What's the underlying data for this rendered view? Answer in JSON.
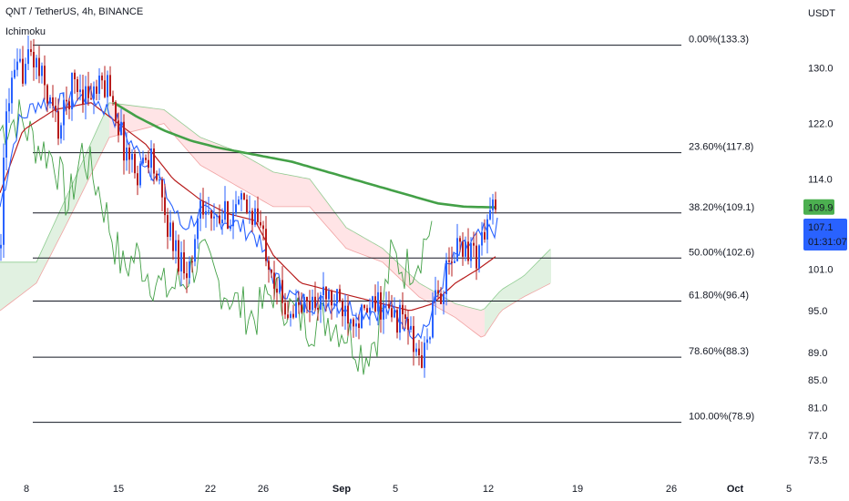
{
  "header": {
    "symbol_line": "QNT / TetherUS, 4h, BINANCE",
    "indicator": "Ichimoku"
  },
  "price_axis": {
    "currency": "USDT",
    "ticks": [
      "130.0",
      "122.0",
      "114.0",
      "101.0",
      "95.0",
      "89.0",
      "85.0",
      "81.0",
      "77.0",
      "73.5"
    ],
    "tick_values": [
      130.0,
      122.0,
      114.0,
      101.0,
      95.0,
      89.0,
      85.0,
      81.0,
      77.0,
      73.5
    ],
    "badges": [
      {
        "text": "109.9",
        "value": 109.9,
        "color": "#4caf50"
      },
      {
        "text": "107.1",
        "value": 107.1,
        "color": "#2962ff"
      },
      {
        "text": "01:31:07",
        "value": 107.1,
        "color": "#2962ff"
      }
    ]
  },
  "time_axis": {
    "labels": [
      "8",
      "15",
      "22",
      "26",
      "Sep",
      "5",
      "12",
      "19",
      "26",
      "Oct",
      "5"
    ],
    "bold": [
      "Sep",
      "Oct"
    ]
  },
  "colors": {
    "bull": "#2962ff",
    "bear": "#b71c1c",
    "ma": "#43a047",
    "conversion": "#2962ff",
    "base": "#b71c1c",
    "lagging": "#43a047",
    "cloud_bull": "#c8e6c9",
    "cloud_bear": "#ffcdd2",
    "fib_line": "#131722"
  },
  "chart_data": {
    "type": "candlestick",
    "title": "QNT / TetherUS, 4h, BINANCE",
    "y_unit": "USDT",
    "ylim": [
      71.5,
      138.5
    ],
    "fib_levels": [
      {
        "label": "0.00%(133.3)",
        "value": 133.3
      },
      {
        "label": "23.60%(117.8)",
        "value": 117.8
      },
      {
        "label": "38.20%(109.1)",
        "value": 109.1
      },
      {
        "label": "50.00%(102.6)",
        "value": 102.6
      },
      {
        "label": "61.80%(96.4)",
        "value": 96.4
      },
      {
        "label": "78.60%(88.3)",
        "value": 88.3
      },
      {
        "label": "100.00%(78.9)",
        "value": 78.9
      }
    ],
    "price_path": [
      {
        "x": 0,
        "v": 104
      },
      {
        "x": 8,
        "v": 126
      },
      {
        "x": 20,
        "v": 129
      },
      {
        "x": 35,
        "v": 132
      },
      {
        "x": 50,
        "v": 127
      },
      {
        "x": 65,
        "v": 121
      },
      {
        "x": 80,
        "v": 128
      },
      {
        "x": 100,
        "v": 126
      },
      {
        "x": 120,
        "v": 128
      },
      {
        "x": 135,
        "v": 119
      },
      {
        "x": 150,
        "v": 115
      },
      {
        "x": 165,
        "v": 118
      },
      {
        "x": 180,
        "v": 109
      },
      {
        "x": 195,
        "v": 103
      },
      {
        "x": 210,
        "v": 101
      },
      {
        "x": 220,
        "v": 112
      },
      {
        "x": 235,
        "v": 107
      },
      {
        "x": 250,
        "v": 109
      },
      {
        "x": 265,
        "v": 110
      },
      {
        "x": 280,
        "v": 109
      },
      {
        "x": 295,
        "v": 103
      },
      {
        "x": 310,
        "v": 96
      },
      {
        "x": 325,
        "v": 95
      },
      {
        "x": 340,
        "v": 96
      },
      {
        "x": 355,
        "v": 97
      },
      {
        "x": 370,
        "v": 96
      },
      {
        "x": 385,
        "v": 95
      },
      {
        "x": 400,
        "v": 94
      },
      {
        "x": 415,
        "v": 96
      },
      {
        "x": 430,
        "v": 94
      },
      {
        "x": 445,
        "v": 94
      },
      {
        "x": 455,
        "v": 89
      },
      {
        "x": 465,
        "v": 88
      },
      {
        "x": 475,
        "v": 95
      },
      {
        "x": 490,
        "v": 100
      },
      {
        "x": 505,
        "v": 105
      },
      {
        "x": 515,
        "v": 104
      },
      {
        "x": 525,
        "v": 103
      },
      {
        "x": 535,
        "v": 108
      },
      {
        "x": 541,
        "v": 110
      },
      {
        "x": 546,
        "v": 107.1
      }
    ],
    "ma_path": [
      {
        "x": 125,
        "v": 125
      },
      {
        "x": 150,
        "v": 123
      },
      {
        "x": 180,
        "v": 121
      },
      {
        "x": 210,
        "v": 119.5
      },
      {
        "x": 240,
        "v": 118.5
      },
      {
        "x": 280,
        "v": 117.5
      },
      {
        "x": 320,
        "v": 116.5
      },
      {
        "x": 360,
        "v": 115
      },
      {
        "x": 400,
        "v": 113.5
      },
      {
        "x": 440,
        "v": 112
      },
      {
        "x": 480,
        "v": 110.5
      },
      {
        "x": 510,
        "v": 110
      },
      {
        "x": 546,
        "v": 109.9
      }
    ],
    "cloud_a": [
      {
        "x": 0,
        "v": 102
      },
      {
        "x": 40,
        "v": 102
      },
      {
        "x": 75,
        "v": 112
      },
      {
        "x": 120,
        "v": 125
      },
      {
        "x": 180,
        "v": 124
      },
      {
        "x": 220,
        "v": 120
      },
      {
        "x": 260,
        "v": 118
      },
      {
        "x": 300,
        "v": 115
      },
      {
        "x": 340,
        "v": 114
      },
      {
        "x": 380,
        "v": 107
      },
      {
        "x": 420,
        "v": 104
      },
      {
        "x": 460,
        "v": 99
      },
      {
        "x": 500,
        "v": 96
      },
      {
        "x": 530,
        "v": 95
      },
      {
        "x": 550,
        "v": 98
      },
      {
        "x": 575,
        "v": 100
      },
      {
        "x": 605,
        "v": 104
      }
    ],
    "cloud_b": [
      {
        "x": 0,
        "v": 95
      },
      {
        "x": 40,
        "v": 99
      },
      {
        "x": 75,
        "v": 108
      },
      {
        "x": 120,
        "v": 120
      },
      {
        "x": 180,
        "v": 122
      },
      {
        "x": 220,
        "v": 116
      },
      {
        "x": 260,
        "v": 113
      },
      {
        "x": 300,
        "v": 110
      },
      {
        "x": 340,
        "v": 110
      },
      {
        "x": 380,
        "v": 104
      },
      {
        "x": 420,
        "v": 102
      },
      {
        "x": 460,
        "v": 97
      },
      {
        "x": 500,
        "v": 94
      },
      {
        "x": 530,
        "v": 91
      },
      {
        "x": 550,
        "v": 95
      },
      {
        "x": 575,
        "v": 97
      },
      {
        "x": 605,
        "v": 99
      }
    ],
    "lagging_path": [
      {
        "x": 0,
        "v": 121
      },
      {
        "x": 20,
        "v": 123
      },
      {
        "x": 40,
        "v": 119
      },
      {
        "x": 60,
        "v": 117
      },
      {
        "x": 75,
        "v": 110
      },
      {
        "x": 90,
        "v": 118
      },
      {
        "x": 110,
        "v": 112
      },
      {
        "x": 125,
        "v": 105
      },
      {
        "x": 135,
        "v": 101
      },
      {
        "x": 150,
        "v": 103
      },
      {
        "x": 165,
        "v": 100
      },
      {
        "x": 180,
        "v": 98
      },
      {
        "x": 200,
        "v": 99
      },
      {
        "x": 220,
        "v": 103
      },
      {
        "x": 240,
        "v": 99
      },
      {
        "x": 260,
        "v": 96
      },
      {
        "x": 280,
        "v": 94
      },
      {
        "x": 300,
        "v": 98
      },
      {
        "x": 320,
        "v": 95
      },
      {
        "x": 340,
        "v": 93
      },
      {
        "x": 360,
        "v": 94
      },
      {
        "x": 380,
        "v": 92
      },
      {
        "x": 400,
        "v": 88.5
      },
      {
        "x": 415,
        "v": 92
      },
      {
        "x": 430,
        "v": 103
      },
      {
        "x": 445,
        "v": 101
      },
      {
        "x": 460,
        "v": 103
      },
      {
        "x": 475,
        "v": 108
      }
    ],
    "conversion_path": [
      {
        "x": 0,
        "v": 110
      },
      {
        "x": 20,
        "v": 122
      },
      {
        "x": 40,
        "v": 125
      },
      {
        "x": 70,
        "v": 125
      },
      {
        "x": 100,
        "v": 126
      },
      {
        "x": 125,
        "v": 123
      },
      {
        "x": 150,
        "v": 118
      },
      {
        "x": 175,
        "v": 114
      },
      {
        "x": 200,
        "v": 107
      },
      {
        "x": 220,
        "v": 109
      },
      {
        "x": 250,
        "v": 108
      },
      {
        "x": 280,
        "v": 106
      },
      {
        "x": 300,
        "v": 100
      },
      {
        "x": 320,
        "v": 97
      },
      {
        "x": 345,
        "v": 96
      },
      {
        "x": 370,
        "v": 96
      },
      {
        "x": 400,
        "v": 95
      },
      {
        "x": 430,
        "v": 95
      },
      {
        "x": 455,
        "v": 92
      },
      {
        "x": 470,
        "v": 93
      },
      {
        "x": 490,
        "v": 101
      },
      {
        "x": 510,
        "v": 104
      },
      {
        "x": 530,
        "v": 106
      },
      {
        "x": 546,
        "v": 107
      }
    ],
    "base_path": [
      {
        "x": 0,
        "v": 112
      },
      {
        "x": 25,
        "v": 121
      },
      {
        "x": 60,
        "v": 124
      },
      {
        "x": 100,
        "v": 125
      },
      {
        "x": 130,
        "v": 122
      },
      {
        "x": 160,
        "v": 119
      },
      {
        "x": 190,
        "v": 114
      },
      {
        "x": 220,
        "v": 111
      },
      {
        "x": 250,
        "v": 109
      },
      {
        "x": 280,
        "v": 108
      },
      {
        "x": 300,
        "v": 103
      },
      {
        "x": 330,
        "v": 99
      },
      {
        "x": 360,
        "v": 98
      },
      {
        "x": 390,
        "v": 97
      },
      {
        "x": 420,
        "v": 96
      },
      {
        "x": 450,
        "v": 95
      },
      {
        "x": 475,
        "v": 96
      },
      {
        "x": 500,
        "v": 99
      },
      {
        "x": 525,
        "v": 101
      },
      {
        "x": 546,
        "v": 103
      }
    ]
  }
}
